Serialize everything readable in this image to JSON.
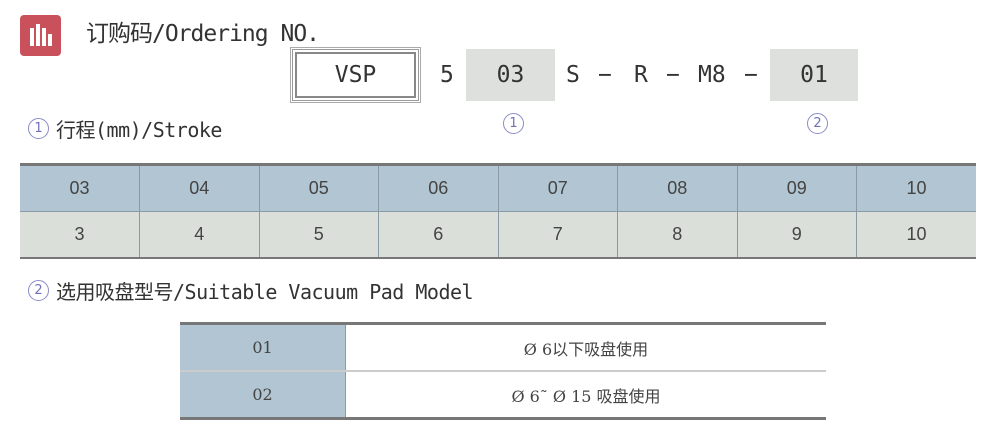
{
  "header": {
    "title": "订购码/Ordering NO.",
    "icon": "bar-chart-icon",
    "icon_color": "#c8515c"
  },
  "code": {
    "series": "VSP",
    "bore": "5",
    "stroke": "03",
    "s": "S",
    "dash": "−",
    "r": "R",
    "thread": "M8",
    "pad": "01",
    "marker1": "①",
    "marker2": "②"
  },
  "stroke_section": {
    "marker": "①",
    "title": "行程(mm)/Stroke",
    "codes": [
      "03",
      "04",
      "05",
      "06",
      "07",
      "08",
      "09",
      "10"
    ],
    "values": [
      "3",
      "4",
      "5",
      "6",
      "7",
      "8",
      "9",
      "10"
    ]
  },
  "pad_section": {
    "marker": "②",
    "title": "选用吸盘型号/Suitable Vacuum Pad Model",
    "rows": [
      {
        "code": "01",
        "desc": "Ø 6以下吸盘使用"
      },
      {
        "code": "02",
        "desc": "Ø 6˜ Ø 15 吸盘使用"
      }
    ]
  },
  "colors": {
    "header_cell": "#b1c5d2",
    "body_cell": "#dadfd9",
    "code_box": "#dde0dc"
  }
}
